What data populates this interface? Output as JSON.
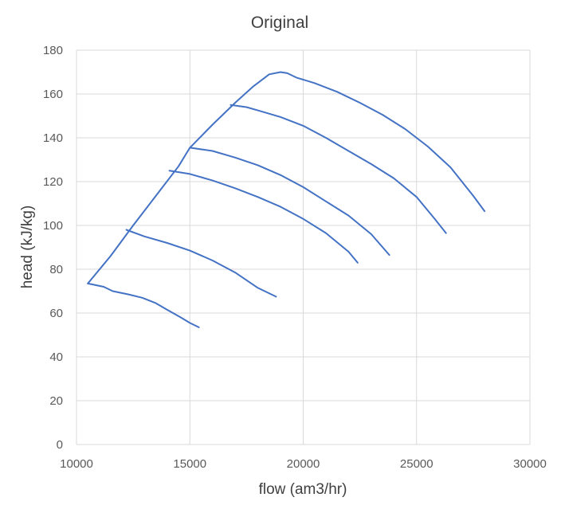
{
  "chart_data": {
    "type": "line",
    "title": "Original",
    "xlabel": "flow (am3/hr)",
    "ylabel": "head (kJ/kg)",
    "xlim": [
      10000,
      30000
    ],
    "ylim": [
      0,
      180
    ],
    "x_ticks": [
      10000,
      15000,
      20000,
      25000,
      30000
    ],
    "y_ticks": [
      0,
      20,
      40,
      60,
      80,
      100,
      120,
      140,
      160,
      180
    ],
    "x_tick_labels": [
      "10000",
      "15000",
      "20000",
      "25000",
      "30000"
    ],
    "y_tick_labels": [
      "0",
      "20",
      "40",
      "60",
      "80",
      "100",
      "120",
      "140",
      "160",
      "180"
    ],
    "grid": true,
    "line_color": "#4472c4",
    "series": [
      {
        "x": [
          10500,
          11200,
          11600,
          12300,
          12900,
          13500,
          14000,
          14600,
          15000,
          15400
        ],
        "y": [
          73.5,
          72,
          70,
          68.5,
          67,
          64.5,
          61.5,
          58,
          55.5,
          53.5
        ]
      },
      {
        "x": [
          12200,
          13000,
          14000,
          15000,
          16000,
          17000,
          18000,
          18800
        ],
        "y": [
          98,
          95,
          92,
          88.5,
          84,
          78.5,
          71.5,
          67.5
        ]
      },
      {
        "x": [
          14100,
          15000,
          16000,
          17000,
          18000,
          19000,
          20000,
          21000,
          22000,
          22400
        ],
        "y": [
          125,
          123.5,
          120.5,
          117,
          113,
          108.5,
          103,
          96.5,
          88,
          83
        ]
      },
      {
        "x": [
          15000,
          16000,
          17000,
          18000,
          19000,
          20000,
          21000,
          22000,
          23000,
          23800
        ],
        "y": [
          135.5,
          134,
          131,
          127.5,
          123,
          117.5,
          111,
          104.5,
          96,
          86.5
        ]
      },
      {
        "x": [
          16800,
          17500,
          18000,
          19000,
          20000,
          21000,
          22000,
          23000,
          24000,
          25000,
          25800,
          26300
        ],
        "y": [
          155,
          154,
          152.5,
          149.5,
          145.5,
          140,
          134,
          128,
          121.5,
          113,
          103,
          96.5
        ]
      },
      {
        "x": [
          10500,
          11500,
          12500,
          13500,
          14500,
          15000,
          16000,
          17000,
          17800,
          18500,
          19000,
          19300,
          19700,
          20500,
          21500,
          22500,
          23500,
          24500,
          25500,
          26500,
          27500,
          28000
        ],
        "y": [
          73.5,
          86,
          100,
          113.5,
          127,
          135.5,
          146,
          156,
          163.5,
          169,
          170,
          169.5,
          167.5,
          165,
          161,
          156,
          150.5,
          144,
          136,
          126.5,
          113.5,
          106.5
        ]
      }
    ]
  }
}
